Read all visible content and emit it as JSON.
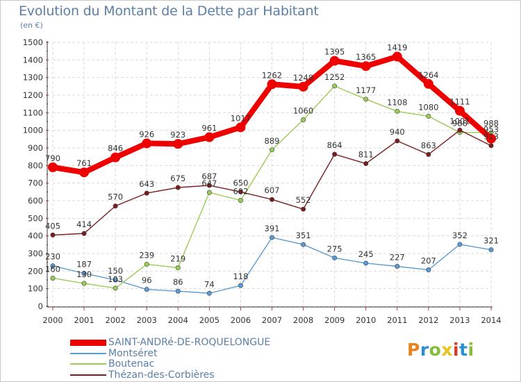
{
  "header": {
    "title": "Evolution du Montant de la Dette par Habitant",
    "unit": "(en €)"
  },
  "logo": {
    "text": "Proxiti",
    "colors": [
      "#e8821e",
      "#2a8fd0",
      "#86bd38",
      "#e8c21e",
      "#d23c2a",
      "#2a8fd0",
      "#86bd38"
    ]
  },
  "chart_data": {
    "type": "line",
    "title": "Evolution du Montant de la Dette par Habitant",
    "ylabel": "(en €)",
    "xlabel": "",
    "x": [
      "2000",
      "2001",
      "2002",
      "2003",
      "2004",
      "2005",
      "2006",
      "2007",
      "2008",
      "2009",
      "2010",
      "2011",
      "2012",
      "2013",
      "2014"
    ],
    "ylim": [
      0,
      1500
    ],
    "yticks": [
      0,
      100,
      200,
      300,
      400,
      500,
      600,
      700,
      800,
      900,
      1000,
      1100,
      1200,
      1300,
      1400,
      1500
    ],
    "grid": true,
    "legend_position": "bottom-left",
    "series": [
      {
        "name": "SAINT-ANDRé-DE-ROQUELONGUE",
        "color": "#ee0000",
        "values": [
          790,
          761,
          846,
          926,
          923,
          961,
          1017,
          1262,
          1248,
          1395,
          1365,
          1419,
          1264,
          1111,
          953
        ]
      },
      {
        "name": "Montséret",
        "color": "#5b9bd5",
        "values": [
          230,
          187,
          150,
          96,
          86,
          74,
          118,
          391,
          351,
          275,
          245,
          227,
          207,
          352,
          321
        ]
      },
      {
        "name": "Boutenac",
        "color": "#99cc55",
        "values": [
          160,
          130,
          103,
          239,
          219,
          647,
          602,
          889,
          1060,
          1252,
          1177,
          1108,
          1080,
          988,
          988
        ]
      },
      {
        "name": "Thézan-des-Corbières",
        "color": "#7a1c1c",
        "values": [
          405,
          414,
          570,
          643,
          675,
          687,
          650,
          607,
          552,
          864,
          811,
          940,
          863,
          1001,
          913
        ]
      }
    ]
  }
}
